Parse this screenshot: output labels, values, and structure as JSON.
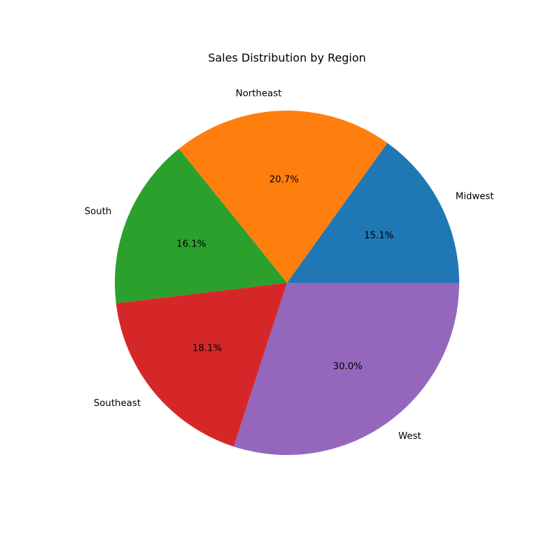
{
  "chart_data": {
    "type": "pie",
    "title": "Sales Distribution by Region",
    "categories": [
      "Midwest",
      "Northeast",
      "South",
      "Southeast",
      "West"
    ],
    "values": [
      15.1,
      20.7,
      16.1,
      18.1,
      30.0
    ],
    "percent_labels": [
      "15.1%",
      "20.7%",
      "16.1%",
      "18.1%",
      "30.0%"
    ],
    "colors": [
      "#1f77b4",
      "#ff7f0e",
      "#2ca02c",
      "#d62728",
      "#9467bd"
    ],
    "start_angle_deg": 0,
    "direction": "counterclockwise",
    "legend": "none"
  }
}
